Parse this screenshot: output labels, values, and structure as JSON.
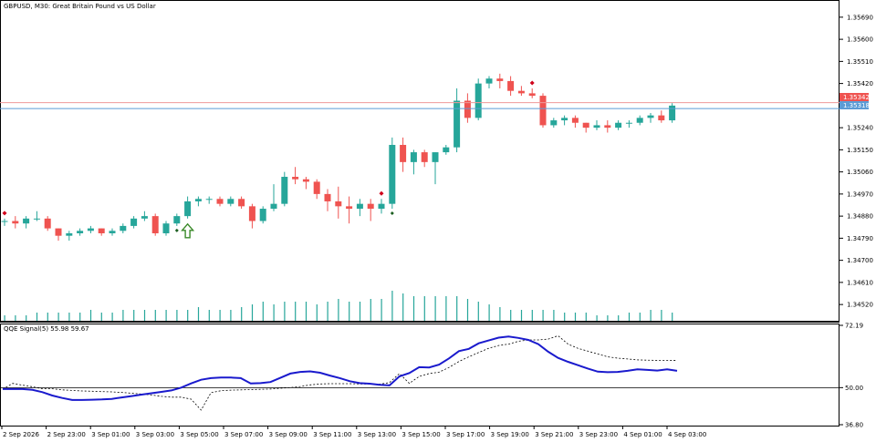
{
  "chart_title": "GBPUSD, M30:  Great Britain Pound vs US Dollar",
  "indicator_title": "QQE Signal(5) 55.98 59.67",
  "colors": {
    "bull": "#26a69a",
    "bear": "#ef5350",
    "volume": "#26a69a",
    "bid_line": "#ef9a9a",
    "ask_line": "#5b9bd5",
    "qqe_fast": "#1a1acd",
    "qqe_slow": "#000000",
    "grid": "#000000",
    "arrow_buy": "#3a8a2a",
    "signal_dot": "#d0021b"
  },
  "price_axis": {
    "ticks": [
      "1.35690",
      "1.35600",
      "1.35510",
      "1.35420",
      "1.35240",
      "1.35150",
      "1.35060",
      "1.34970",
      "1.34880",
      "1.34790",
      "1.34700",
      "1.34610",
      "1.34520"
    ],
    "bid_label": "1.35342",
    "ask_label": "1.35318"
  },
  "indicator_axis": {
    "ticks": [
      "72.19",
      "50.00",
      "36.80"
    ]
  },
  "time_axis": {
    "labels": [
      "2 Sep 2026",
      "2 Sep 23:00",
      "3 Sep 01:00",
      "3 Sep 03:00",
      "3 Sep 05:00",
      "3 Sep 07:00",
      "3 Sep 09:00",
      "3 Sep 11:00",
      "3 Sep 13:00",
      "3 Sep 15:00",
      "3 Sep 17:00",
      "3 Sep 19:00",
      "3 Sep 21:00",
      "3 Sep 23:00",
      "4 Sep 01:00",
      "4 Sep 03:00"
    ]
  },
  "chart_data": [
    {
      "type": "candlestick",
      "title": "GBPUSD, M30:  Great Britain Pound vs US Dollar",
      "bid": 1.35342,
      "ask": 1.35318,
      "candles": [
        [
          1.3486,
          1.3487,
          1.3484,
          1.3486
        ],
        [
          1.3486,
          1.3488,
          1.3483,
          1.3485
        ],
        [
          1.3485,
          1.3488,
          1.3483,
          1.3487
        ],
        [
          1.3487,
          1.349,
          1.3486,
          1.3487
        ],
        [
          1.3487,
          1.3488,
          1.3482,
          1.3483
        ],
        [
          1.3483,
          1.3483,
          1.3478,
          1.348
        ],
        [
          1.348,
          1.3482,
          1.3478,
          1.3481
        ],
        [
          1.3481,
          1.3483,
          1.348,
          1.3482
        ],
        [
          1.3482,
          1.3484,
          1.3481,
          1.3483
        ],
        [
          1.3483,
          1.3483,
          1.348,
          1.3481
        ],
        [
          1.3481,
          1.3483,
          1.348,
          1.3482
        ],
        [
          1.3482,
          1.3485,
          1.3481,
          1.3484
        ],
        [
          1.3484,
          1.3488,
          1.3483,
          1.3487
        ],
        [
          1.3487,
          1.349,
          1.3486,
          1.3488
        ],
        [
          1.3488,
          1.3489,
          1.348,
          1.3481
        ],
        [
          1.3481,
          1.3486,
          1.348,
          1.3485
        ],
        [
          1.3485,
          1.3489,
          1.3484,
          1.3488
        ],
        [
          1.3488,
          1.3496,
          1.3487,
          1.3494
        ],
        [
          1.3494,
          1.3496,
          1.3492,
          1.3495
        ],
        [
          1.3495,
          1.3496,
          1.3493,
          1.3495
        ],
        [
          1.3495,
          1.3496,
          1.3492,
          1.3493
        ],
        [
          1.3493,
          1.3496,
          1.3492,
          1.3495
        ],
        [
          1.3495,
          1.3496,
          1.3491,
          1.3492
        ],
        [
          1.3492,
          1.3493,
          1.3483,
          1.3486
        ],
        [
          1.3486,
          1.3492,
          1.3485,
          1.3491
        ],
        [
          1.3491,
          1.3501,
          1.349,
          1.3493
        ],
        [
          1.3493,
          1.3506,
          1.3492,
          1.3504
        ],
        [
          1.3504,
          1.3508,
          1.3501,
          1.3503
        ],
        [
          1.3503,
          1.3504,
          1.3499,
          1.3502
        ],
        [
          1.3502,
          1.3503,
          1.3495,
          1.3497
        ],
        [
          1.3497,
          1.3499,
          1.349,
          1.3494
        ],
        [
          1.3494,
          1.35,
          1.3487,
          1.3492
        ],
        [
          1.3492,
          1.3496,
          1.3485,
          1.3491
        ],
        [
          1.3491,
          1.3495,
          1.3488,
          1.3493
        ],
        [
          1.3493,
          1.3495,
          1.3486,
          1.3491
        ],
        [
          1.3491,
          1.3495,
          1.3489,
          1.3493
        ],
        [
          1.3493,
          1.352,
          1.3491,
          1.3517
        ],
        [
          1.3517,
          1.352,
          1.3506,
          1.351
        ],
        [
          1.351,
          1.3515,
          1.3505,
          1.3514
        ],
        [
          1.3514,
          1.3515,
          1.3508,
          1.351
        ],
        [
          1.351,
          1.3514,
          1.3501,
          1.3514
        ],
        [
          1.3514,
          1.3517,
          1.3513,
          1.3516
        ],
        [
          1.3516,
          1.354,
          1.3514,
          1.3535
        ],
        [
          1.3535,
          1.3538,
          1.3526,
          1.3528
        ],
        [
          1.3528,
          1.3544,
          1.3527,
          1.3542
        ],
        [
          1.3542,
          1.3545,
          1.354,
          1.3544
        ],
        [
          1.3544,
          1.3546,
          1.354,
          1.3543
        ],
        [
          1.3543,
          1.3545,
          1.3537,
          1.3539
        ],
        [
          1.3539,
          1.3541,
          1.3537,
          1.3538
        ],
        [
          1.3538,
          1.354,
          1.3536,
          1.3537
        ],
        [
          1.3537,
          1.3538,
          1.3524,
          1.3525
        ],
        [
          1.3525,
          1.3528,
          1.3524,
          1.3527
        ],
        [
          1.3527,
          1.3529,
          1.3525,
          1.3528
        ],
        [
          1.3528,
          1.3529,
          1.3524,
          1.3526
        ],
        [
          1.3526,
          1.3526,
          1.3522,
          1.3524
        ],
        [
          1.3524,
          1.3527,
          1.3523,
          1.3525
        ],
        [
          1.3525,
          1.3527,
          1.3522,
          1.3524
        ],
        [
          1.3524,
          1.3527,
          1.3523,
          1.3526
        ],
        [
          1.3526,
          1.3527,
          1.3524,
          1.3526
        ],
        [
          1.3526,
          1.3529,
          1.3525,
          1.3528
        ],
        [
          1.3528,
          1.353,
          1.3526,
          1.3529
        ],
        [
          1.3529,
          1.3531,
          1.3526,
          1.3527
        ],
        [
          1.3527,
          1.3534,
          1.3526,
          1.3533
        ]
      ],
      "volume": [
        2,
        2,
        2,
        3,
        3,
        3,
        3,
        3,
        4,
        3,
        3,
        4,
        4,
        4,
        4,
        4,
        4,
        4,
        5,
        4,
        4,
        4,
        5,
        6,
        7,
        6,
        7,
        7,
        7,
        6,
        7,
        8,
        7,
        7,
        8,
        8,
        11,
        10,
        9,
        9,
        9,
        9,
        9,
        8,
        7,
        6,
        5,
        4,
        4,
        4,
        4,
        4,
        3,
        3,
        3,
        2,
        2,
        2,
        3,
        3,
        4,
        4,
        3
      ],
      "signals": [
        {
          "type": "buy_arrow",
          "index": 17
        },
        {
          "type": "dot_up",
          "index": 0
        },
        {
          "type": "dot_up",
          "index": 35
        },
        {
          "type": "dot_up",
          "index": 49
        },
        {
          "type": "dot_down",
          "index": 16
        },
        {
          "type": "dot_down",
          "index": 36
        }
      ]
    },
    {
      "type": "line",
      "title": "QQE Signal(5) 55.98 59.67",
      "ylim": [
        36.8,
        72.19
      ],
      "levels": [
        50.0
      ],
      "series": [
        {
          "values": [
            49.5,
            49.5,
            49.5,
            49.2,
            48.4,
            47.2,
            46.3,
            45.6,
            45.6,
            45.7,
            45.8,
            46.0,
            46.5,
            47.0,
            47.5,
            48.0,
            48.5,
            49.0,
            50.0,
            51.5,
            52.8,
            53.4,
            53.6,
            53.6,
            53.4,
            51.5,
            51.6,
            52.0,
            53.5,
            55.0,
            55.6,
            55.8,
            55.3,
            54.3,
            53.4,
            52.3,
            51.6,
            51.4,
            51.0,
            50.8,
            54.0,
            55.2,
            57.3,
            57.2,
            58.2,
            60.4,
            63.0,
            63.8,
            65.8,
            66.8,
            67.8,
            68.2,
            67.7,
            67.0,
            65.5,
            62.8,
            60.6,
            59.2,
            58.0,
            56.8,
            55.7,
            55.5,
            55.6,
            56.0,
            56.5,
            56.3,
            56.1,
            56.5,
            55.98
          ]
        },
        {
          "values": [
            49.5,
            51.5,
            50.9,
            50.3,
            49.6,
            49.6,
            49.2,
            49.0,
            48.8,
            48.7,
            48.6,
            48.5,
            48.3,
            48.0,
            47.7,
            47.4,
            46.9,
            46.6,
            46.6,
            45.9,
            42.0,
            48.2,
            48.9,
            49.1,
            49.2,
            49.3,
            49.4,
            49.5,
            49.8,
            50.0,
            50.4,
            51.0,
            51.3,
            51.4,
            51.4,
            51.4,
            51.3,
            51.3,
            51.2,
            51.8,
            55.0,
            51.5,
            54.0,
            55.0,
            55.5,
            57.2,
            59.3,
            61.0,
            62.5,
            64.0,
            65.0,
            65.5,
            66.5,
            67.0,
            67.0,
            67.3,
            68.5,
            65.5,
            64.0,
            63.0,
            62.0,
            61.0,
            60.5,
            60.2,
            59.9,
            59.8,
            59.7,
            59.7,
            59.67
          ]
        }
      ]
    }
  ]
}
